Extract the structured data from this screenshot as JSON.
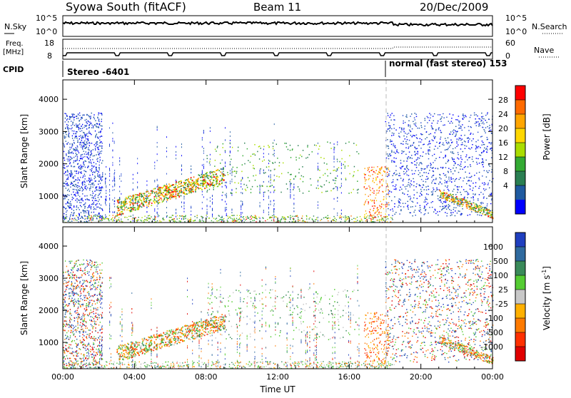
{
  "header": {
    "station": "Syowa South (fitACF)",
    "beam": "Beam 11",
    "date": "20/Dec/2009"
  },
  "strip_nsky": {
    "left_label": "N.Sky",
    "right_label": "N.Search",
    "left_ticks": [
      "10^5",
      "10^0"
    ],
    "right_ticks": [
      "10^5",
      "10^0"
    ]
  },
  "strip_freq": {
    "left_label_1": "Freq.",
    "left_label_2": "[MHz]",
    "left_ticks": [
      "18",
      "8"
    ],
    "right_label": "Nave",
    "right_ticks": [
      "60",
      "0"
    ]
  },
  "cpid": {
    "label": "CPID",
    "segment_1": "Stereo -6401",
    "segment_2": "normal (fast stereo) 153"
  },
  "chart_data": [
    {
      "type": "heatmap",
      "title": "",
      "ylabel": "Slant Range [km]",
      "ylim": [
        180,
        4600
      ],
      "yticks": [
        "1000",
        "2000",
        "3000",
        "4000"
      ],
      "xticks": [
        "00:00",
        "04:00",
        "08:00",
        "12:00",
        "16:00",
        "20:00",
        "00:00"
      ],
      "colorbar": {
        "label": "Power [dB]",
        "ticks": [
          "28",
          "24",
          "20",
          "16",
          "12",
          "8",
          "4"
        ],
        "colors": [
          "#ff0000",
          "#ff6a00",
          "#ffa500",
          "#ffd700",
          "#aadd00",
          "#33aa33",
          "#2a7f52",
          "#1f5aa0",
          "#0000ff"
        ]
      }
    },
    {
      "type": "heatmap",
      "title": "",
      "ylabel": "Slant Range [km]",
      "ylim": [
        180,
        4600
      ],
      "yticks": [
        "1000",
        "2000",
        "3000",
        "4000"
      ],
      "xticks": [
        "00:00",
        "04:00",
        "08:00",
        "12:00",
        "16:00",
        "20:00",
        "00:00"
      ],
      "xlabel": "Time UT",
      "colorbar": {
        "label": "Velocity [m s^-1]",
        "ticks": [
          "1000",
          "500",
          "100",
          "25",
          "-25",
          "-100",
          "-500",
          "-1000"
        ],
        "colors": [
          "#1f3fbf",
          "#2f6a9f",
          "#3a8a5a",
          "#55cc33",
          "#c8c8c8",
          "#ffb000",
          "#ff7a00",
          "#ff3000",
          "#e00000"
        ]
      }
    }
  ]
}
